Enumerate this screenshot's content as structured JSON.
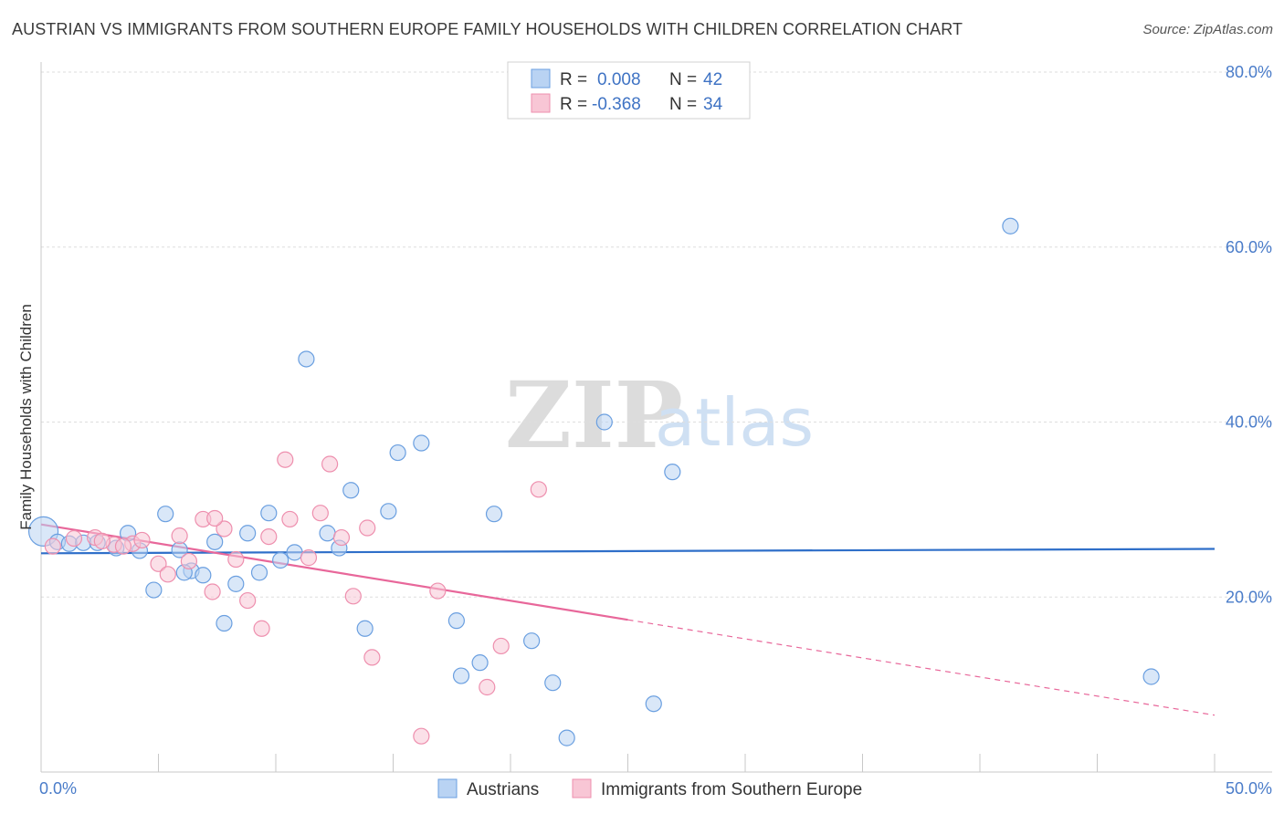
{
  "title": "AUSTRIAN VS IMMIGRANTS FROM SOUTHERN EUROPE FAMILY HOUSEHOLDS WITH CHILDREN CORRELATION CHART",
  "source": "Source: ZipAtlas.com",
  "watermark": {
    "zip": "ZIP",
    "atlas": "atlas"
  },
  "legend": {
    "rows": [
      {
        "r_label": "R =",
        "r_value": "0.008",
        "n_label": "N =",
        "n_value": "42"
      },
      {
        "r_label": "R =",
        "r_value": "-0.368",
        "n_label": "N =",
        "n_value": "34"
      }
    ]
  },
  "chart_data": {
    "type": "scatter",
    "xlabel": "",
    "ylabel": "Family Households with Children",
    "xlim": [
      0,
      50
    ],
    "ylim": [
      0,
      80
    ],
    "x_tick_labels": [
      "0.0%",
      "50.0%"
    ],
    "y_ticks": [
      20,
      40,
      60,
      80
    ],
    "y_tick_labels": [
      "20.0%",
      "40.0%",
      "60.0%",
      "80.0%"
    ],
    "grid": true,
    "legend_position": "top-center",
    "series": [
      {
        "name": "Austrians",
        "color": "#6a9fe0",
        "fill": "#b9d3f3",
        "trend": {
          "x0": 0,
          "y0": 25.0,
          "x1": 50,
          "y1": 25.5,
          "color": "#2f6fc9",
          "dashed_from": null
        },
        "points": [
          [
            0.1,
            27.5
          ],
          [
            0.7,
            26.3
          ],
          [
            1.2,
            26.1
          ],
          [
            1.8,
            26.2
          ],
          [
            2.4,
            26.2
          ],
          [
            3.2,
            25.6
          ],
          [
            3.7,
            27.3
          ],
          [
            4.2,
            25.3
          ],
          [
            4.8,
            20.8
          ],
          [
            5.3,
            29.5
          ],
          [
            5.9,
            25.4
          ],
          [
            6.4,
            23.0
          ],
          [
            6.9,
            22.5
          ],
          [
            7.4,
            26.3
          ],
          [
            7.8,
            17.0
          ],
          [
            8.3,
            21.5
          ],
          [
            8.8,
            27.3
          ],
          [
            9.3,
            22.8
          ],
          [
            9.7,
            29.6
          ],
          [
            10.2,
            24.2
          ],
          [
            10.8,
            25.1
          ],
          [
            11.3,
            47.2
          ],
          [
            12.2,
            27.3
          ],
          [
            12.7,
            25.6
          ],
          [
            13.2,
            32.2
          ],
          [
            13.8,
            16.4
          ],
          [
            14.8,
            29.8
          ],
          [
            15.2,
            36.5
          ],
          [
            16.2,
            37.6
          ],
          [
            17.7,
            17.3
          ],
          [
            17.9,
            11.0
          ],
          [
            18.7,
            12.5
          ],
          [
            19.3,
            29.5
          ],
          [
            20.9,
            15.0
          ],
          [
            21.8,
            10.2
          ],
          [
            22.4,
            3.9
          ],
          [
            24.0,
            40.0
          ],
          [
            26.1,
            7.8
          ],
          [
            26.9,
            34.3
          ],
          [
            41.3,
            62.4
          ],
          [
            47.3,
            10.9
          ],
          [
            6.1,
            22.8
          ]
        ]
      },
      {
        "name": "Immigrants from Southern Europe",
        "color": "#ee8fae",
        "fill": "#f8c6d5",
        "trend": {
          "x0": 0,
          "y0": 28.3,
          "x1": 50,
          "y1": 6.5,
          "color": "#e8679a",
          "dashed_from": 25.0
        },
        "points": [
          [
            0.5,
            25.8
          ],
          [
            1.4,
            26.7
          ],
          [
            2.3,
            26.8
          ],
          [
            3.1,
            26.0
          ],
          [
            3.9,
            26.1
          ],
          [
            4.3,
            26.5
          ],
          [
            5.0,
            23.8
          ],
          [
            5.4,
            22.6
          ],
          [
            5.9,
            27.0
          ],
          [
            6.3,
            24.1
          ],
          [
            6.9,
            28.9
          ],
          [
            7.3,
            20.6
          ],
          [
            7.8,
            27.8
          ],
          [
            8.3,
            24.3
          ],
          [
            8.8,
            19.6
          ],
          [
            9.4,
            16.4
          ],
          [
            9.7,
            26.9
          ],
          [
            10.4,
            35.7
          ],
          [
            10.6,
            28.9
          ],
          [
            11.4,
            24.5
          ],
          [
            11.9,
            29.6
          ],
          [
            12.3,
            35.2
          ],
          [
            12.8,
            26.8
          ],
          [
            13.3,
            20.1
          ],
          [
            13.9,
            27.9
          ],
          [
            14.1,
            13.1
          ],
          [
            16.2,
            4.1
          ],
          [
            16.9,
            20.7
          ],
          [
            19.0,
            9.7
          ],
          [
            19.6,
            14.4
          ],
          [
            21.2,
            32.3
          ],
          [
            7.4,
            29.0
          ],
          [
            3.5,
            25.8
          ],
          [
            2.6,
            26.4
          ]
        ]
      }
    ]
  }
}
